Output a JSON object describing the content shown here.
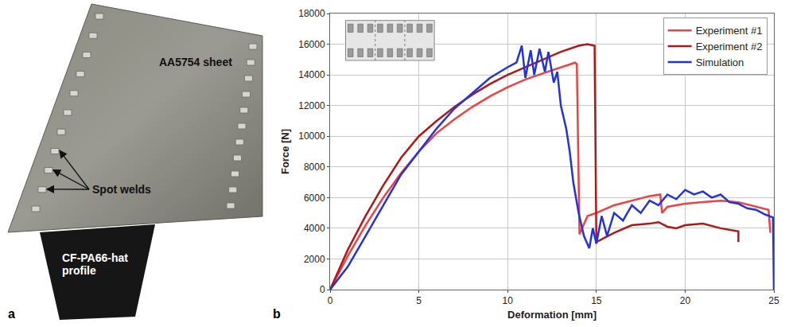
{
  "photo": {
    "letter": "a",
    "sheet_label": "AA5754 sheet",
    "weld_label": "Spot welds",
    "profile_label": "CF-PA66-hat profile"
  },
  "chart_letter": "b",
  "chart_data": {
    "type": "line",
    "x_label": "Deformation [mm]",
    "y_label": "Force [N]",
    "xlim": [
      0,
      25
    ],
    "xticks": [
      0,
      5,
      10,
      15,
      20,
      25
    ],
    "ylim": [
      0,
      18000
    ],
    "yticks": [
      0,
      2000,
      4000,
      6000,
      8000,
      10000,
      12000,
      14000,
      16000,
      18000
    ],
    "grid": true,
    "legend": "top right",
    "series": [
      {
        "name": "Experiment #1",
        "color": "#f04040",
        "x": [
          0,
          1,
          2,
          3,
          4,
          5,
          6,
          7,
          8,
          9,
          10,
          11,
          12,
          13,
          13.8,
          13.9,
          14.05,
          14.5,
          15,
          16,
          17,
          18,
          18.6,
          18.7,
          19,
          20,
          21,
          22,
          23,
          24,
          24.7,
          24.8
        ],
        "values": [
          0,
          2200,
          4200,
          6000,
          7600,
          9000,
          10200,
          11100,
          11900,
          12600,
          13200,
          13700,
          14100,
          14500,
          14800,
          14700,
          3600,
          4800,
          5000,
          5500,
          5800,
          6100,
          6200,
          5000,
          5400,
          5600,
          5700,
          5800,
          5700,
          5400,
          5200,
          3700
        ]
      },
      {
        "name": "Experiment #2",
        "color": "#b01818",
        "x": [
          0,
          1,
          2,
          3,
          4,
          5,
          6,
          7,
          8,
          9,
          10,
          11,
          12,
          13,
          14,
          14.5,
          14.9,
          15,
          15.5,
          16,
          17,
          18,
          18.5,
          19,
          19.5,
          20,
          21,
          22,
          23,
          23
        ],
        "values": [
          0,
          2600,
          4800,
          6800,
          8600,
          10000,
          11000,
          11900,
          12700,
          13400,
          14000,
          14500,
          15000,
          15500,
          15900,
          16000,
          15900,
          3100,
          3400,
          3700,
          4200,
          4300,
          4400,
          4100,
          4000,
          4200,
          4300,
          4000,
          3800,
          3100
        ]
      },
      {
        "name": "Simulation",
        "color": "#2233dd",
        "x": [
          0,
          1,
          2,
          3,
          4,
          5,
          6,
          7,
          8,
          9,
          10,
          10.5,
          10.8,
          11,
          11.3,
          11.5,
          11.8,
          12.1,
          12.3,
          12.6,
          12.8,
          13,
          13.3,
          13.5,
          13.7,
          14,
          14.3,
          14.6,
          14.8,
          15,
          15.3,
          15.6,
          16,
          16.5,
          17,
          17.5,
          18,
          18.5,
          19,
          19.5,
          20,
          20.5,
          21,
          21.5,
          22,
          22.5,
          23,
          23.5,
          24,
          24.5,
          24.95,
          25
        ],
        "values": [
          0,
          1500,
          3500,
          5500,
          7500,
          9000,
          10500,
          11800,
          12800,
          13800,
          14500,
          14800,
          15900,
          13800,
          15600,
          14000,
          15700,
          14200,
          15500,
          13500,
          14200,
          12000,
          10500,
          9000,
          7000,
          5000,
          3500,
          2700,
          4000,
          3000,
          4800,
          3500,
          5000,
          4500,
          5500,
          5000,
          5800,
          5500,
          6200,
          5900,
          6500,
          6200,
          6400,
          6000,
          6200,
          5700,
          5600,
          5300,
          5200,
          4900,
          4700,
          0
        ]
      }
    ]
  }
}
